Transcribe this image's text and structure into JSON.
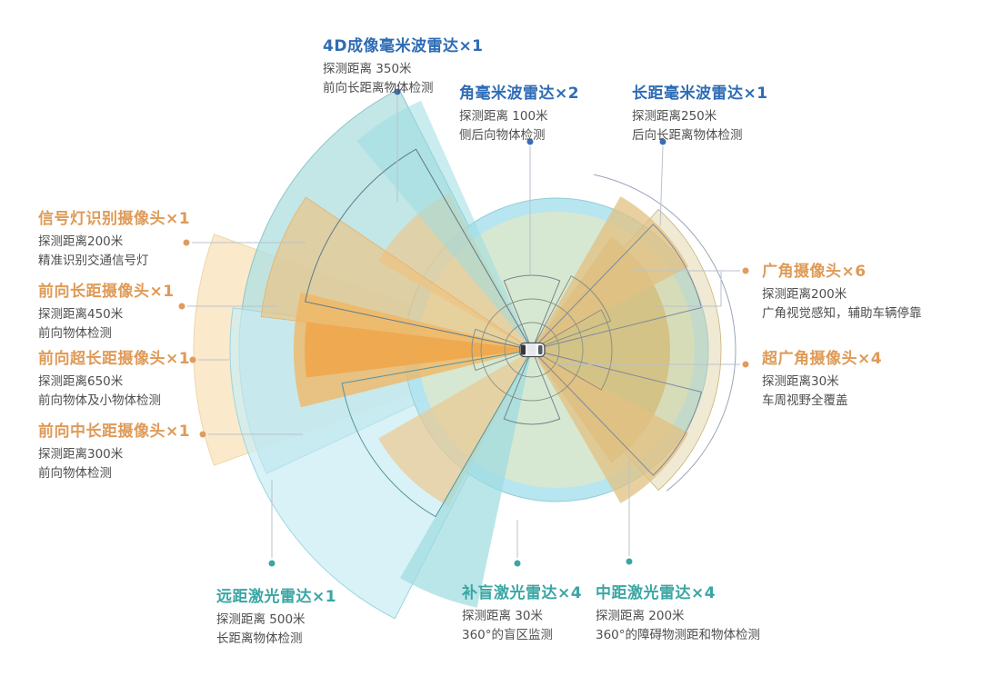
{
  "palette": {
    "radar_blue": "#2e6cb5",
    "camera_orange": "#df9a57",
    "lidar_teal": "#3aa6a4",
    "body_text": "#4e4e4e",
    "fan_teal": "#b4e0e1",
    "fan_cyan": "#c9edf4",
    "fan_orange": "#f0a74b",
    "fan_cream": "#fbe8c8",
    "fan_olive": "#d4c183"
  },
  "sensors": [
    {
      "id": "4d-imaging-radar",
      "type": "radar",
      "color": "radar_blue",
      "title": "4D成像毫米波雷达×1",
      "range": "探测距离 350米",
      "desc": "前向长距离物体检测",
      "range_m": 350,
      "count": 1
    },
    {
      "id": "corner-radar",
      "type": "radar",
      "color": "radar_blue",
      "title": "角毫米波雷达×2",
      "range": "探测距离 100米",
      "desc": "侧后向物体检测",
      "range_m": 100,
      "count": 2
    },
    {
      "id": "long-range-radar",
      "type": "radar",
      "color": "radar_blue",
      "title": "长距毫米波雷达×1",
      "range": "探测距离250米",
      "desc": "后向长距离物体检测",
      "range_m": 250,
      "count": 1
    },
    {
      "id": "traffic-light-camera",
      "type": "camera",
      "color": "camera_orange",
      "title": "信号灯识别摄像头×1",
      "range": "探测距离200米",
      "desc": "精准识别交通信号灯",
      "range_m": 200,
      "count": 1
    },
    {
      "id": "front-long-camera",
      "type": "camera",
      "color": "camera_orange",
      "title": "前向长距摄像头×1",
      "range": "探测距离450米",
      "desc": "前向物体检测",
      "range_m": 450,
      "count": 1
    },
    {
      "id": "front-ultra-long-camera",
      "type": "camera",
      "color": "camera_orange",
      "title": "前向超长距摄像头×1",
      "range": "探测距离650米",
      "desc": "前向物体及小物体检测",
      "range_m": 650,
      "count": 1
    },
    {
      "id": "front-mid-long-camera",
      "type": "camera",
      "color": "camera_orange",
      "title": "前向中长距摄像头×1",
      "range": "探测距离300米",
      "desc": "前向物体检测",
      "range_m": 300,
      "count": 1
    },
    {
      "id": "wide-angle-camera",
      "type": "camera",
      "color": "camera_orange",
      "title": "广角摄像头×6",
      "range": "探测距离200米",
      "desc": "广角视觉感知，辅助车辆停靠",
      "range_m": 200,
      "count": 6
    },
    {
      "id": "ultra-wide-camera",
      "type": "camera",
      "color": "camera_orange",
      "title": "超广角摄像头×4",
      "range": "探测距离30米",
      "desc": "车周视野全覆盖",
      "range_m": 30,
      "count": 4
    },
    {
      "id": "far-lidar",
      "type": "lidar",
      "color": "lidar_teal",
      "title": "远距激光雷达×1",
      "range": "探测距离 500米",
      "desc": "长距离物体检测",
      "range_m": 500,
      "count": 1
    },
    {
      "id": "blind-spot-lidar",
      "type": "lidar",
      "color": "lidar_teal",
      "title": "补盲激光雷达×4",
      "range": "探测距离 30米",
      "desc": "360°的盲区监测",
      "range_m": 30,
      "count": 4
    },
    {
      "id": "mid-lidar",
      "type": "lidar",
      "color": "lidar_teal",
      "title": "中距激光雷达×4",
      "range": "探测距离 200米",
      "desc": "360°的障碍物测距和物体检测",
      "range_m": 200,
      "count": 4
    }
  ]
}
